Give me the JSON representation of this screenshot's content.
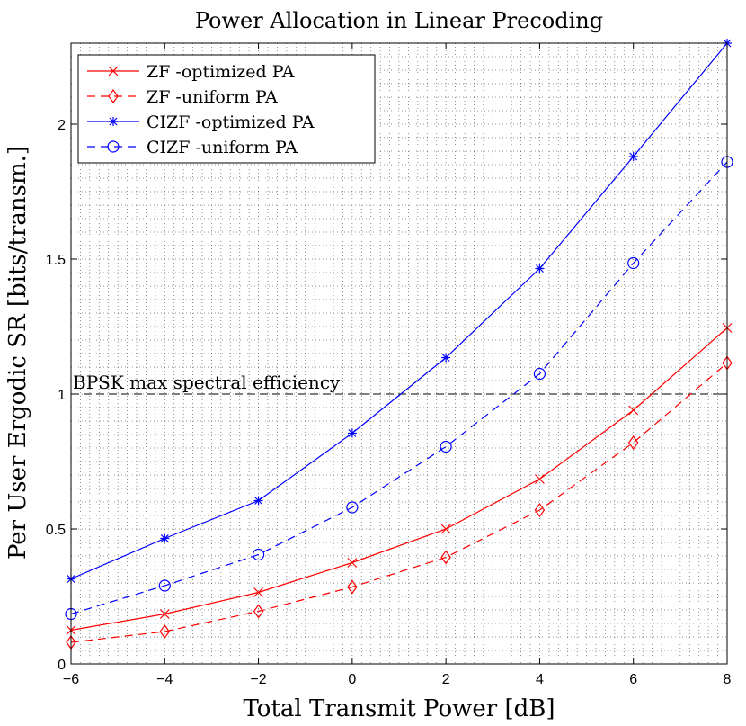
{
  "chart_data": {
    "type": "line",
    "title": "Power Allocation in Linear Precoding",
    "xlabel": "Total Transmit Power [dB]",
    "ylabel": "Per User Ergodic SR [bits/transm.]",
    "xlim": [
      -6,
      8
    ],
    "ylim": [
      0,
      2.3
    ],
    "xticks": [
      -6,
      -4,
      -2,
      0,
      2,
      4,
      6,
      8
    ],
    "xtick_labels": [
      "−6",
      "−4",
      "−2",
      "0",
      "2",
      "4",
      "6",
      "8"
    ],
    "yticks": [
      0,
      0.5,
      1,
      1.5,
      2
    ],
    "ytick_labels": [
      "0",
      "0.5",
      "1",
      "1.5",
      "2"
    ],
    "grid": "minor dotted",
    "legend_position": "top-left",
    "x": [
      -6,
      -4,
      -2,
      0,
      2,
      4,
      6,
      8
    ],
    "series": [
      {
        "name": "ZF -optimized PA",
        "color": "#ff0000",
        "linestyle": "solid",
        "marker": "x",
        "values": [
          0.125,
          0.185,
          0.265,
          0.375,
          0.5,
          0.685,
          0.94,
          1.245
        ]
      },
      {
        "name": "ZF -uniform PA",
        "color": "#ff0000",
        "linestyle": "dashed",
        "marker": "diamond",
        "values": [
          0.08,
          0.12,
          0.195,
          0.285,
          0.395,
          0.57,
          0.82,
          1.115
        ]
      },
      {
        "name": "CIZF -optimized PA",
        "color": "#0000ff",
        "linestyle": "solid",
        "marker": "asterisk",
        "values": [
          0.315,
          0.465,
          0.605,
          0.855,
          1.135,
          1.465,
          1.88,
          2.3
        ]
      },
      {
        "name": "CIZF -uniform PA",
        "color": "#0000ff",
        "linestyle": "dashed",
        "marker": "circle",
        "values": [
          0.185,
          0.29,
          0.405,
          0.58,
          0.805,
          1.075,
          1.485,
          1.86
        ]
      }
    ],
    "reference_line": {
      "y": 1,
      "color": "#000000",
      "linestyle": "dashed",
      "label": "BPSK max spectral efficiency"
    }
  }
}
